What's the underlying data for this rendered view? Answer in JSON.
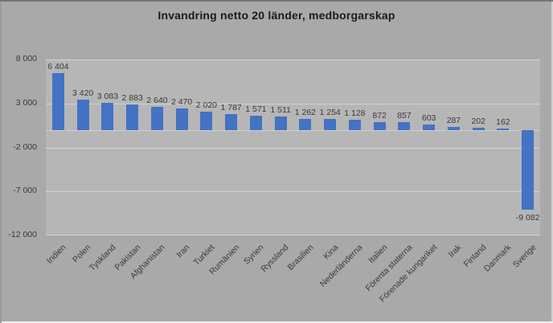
{
  "title": "Invandring netto 20 länder, medborgarskap",
  "colors": {
    "bar": "#4472c4",
    "background": "#a9a9a9",
    "plot_background": "#b6b6b6",
    "gridline": "#d4d4d4",
    "axis_line": "#cfcfcf",
    "label_text": "#3a3a3a",
    "title_text": "#1b1b1b"
  },
  "y_axis": {
    "ticks": [
      {
        "label": "8 000",
        "value": 8000
      },
      {
        "label": "3 000",
        "value": 3000
      },
      {
        "label": "-2 000",
        "value": -2000
      },
      {
        "label": "-7 000",
        "value": -7000
      },
      {
        "label": "-12 000",
        "value": -12000
      }
    ]
  },
  "chart_data": {
    "type": "bar",
    "title": "Invandring netto 20 länder, medborgarskap",
    "categories": [
      "Indien",
      "Polen",
      "Tyskland",
      "Pakistan",
      "Afghanistan",
      "Iran",
      "Turkiet",
      "Rumänien",
      "Syrien",
      "Ryssland",
      "Brasilien",
      "Kina",
      "Nederländerna",
      "Italien",
      "Förenta staterna",
      "Förenade kungariket",
      "Irak",
      "Finland",
      "Danmark",
      "Sverige"
    ],
    "values": [
      6404,
      3420,
      3083,
      2883,
      2640,
      2470,
      2020,
      1787,
      1571,
      1511,
      1262,
      1254,
      1128,
      872,
      857,
      603,
      287,
      202,
      162,
      -9082
    ],
    "value_labels": [
      "6 404",
      "3 420",
      "3 083",
      "2 883",
      "2 640",
      "2 470",
      "2 020",
      "1 787",
      "1 571",
      "1 511",
      "1 262",
      "1 254",
      "1 128",
      "872",
      "857",
      "603",
      "287",
      "202",
      "162",
      "-9 082"
    ],
    "xlabel": "",
    "ylabel": "",
    "ylim": [
      -12000,
      8000
    ],
    "y_tick_step": 5000,
    "grid": true,
    "legend": false,
    "bar_color": "#4472c4",
    "x_tick_rotation_deg": 45,
    "data_label_position": "outside-end"
  }
}
